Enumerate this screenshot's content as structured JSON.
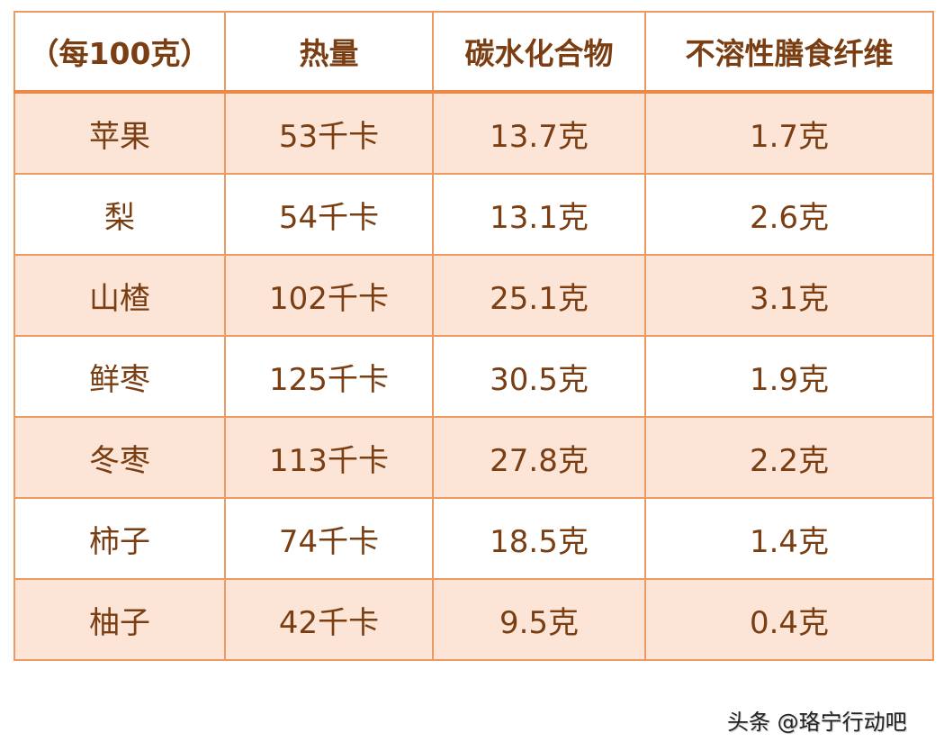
{
  "table": {
    "headers": [
      "（每100克）",
      "热量",
      "碳水化合物",
      "不溶性膳食纤维"
    ],
    "rows": [
      [
        "苹果",
        "53千卡",
        "13.7克",
        "1.7克"
      ],
      [
        "梨",
        "54千卡",
        "13.1克",
        "2.6克"
      ],
      [
        "山楂",
        "102千卡",
        "25.1克",
        "3.1克"
      ],
      [
        "鲜枣",
        "125千卡",
        "30.5克",
        "1.9克"
      ],
      [
        "冬枣",
        "113千卡",
        "27.8克",
        "2.2克"
      ],
      [
        "柿子",
        "74千卡",
        "18.5克",
        "1.4克"
      ],
      [
        "柚子",
        "42千卡",
        "9.5克",
        "0.4克"
      ]
    ]
  },
  "watermark": "头条 @珞宁行动吧",
  "colors": {
    "border": "#EC9A63",
    "shaded_row": "#FCE4D6",
    "text": "#7A3E12"
  }
}
